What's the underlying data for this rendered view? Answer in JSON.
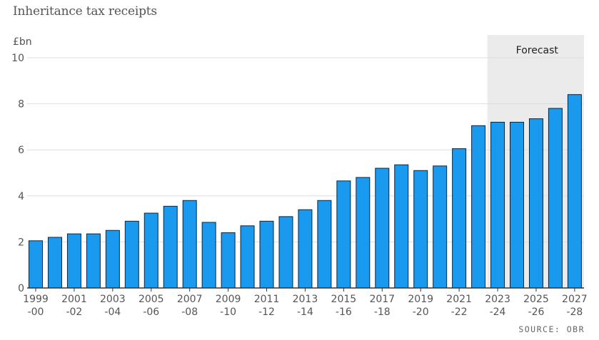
{
  "title": "Inheritance tax receipts",
  "source": "SOURCE: OBR",
  "colors": {
    "bar": "#1a9aef",
    "bar_stroke": "#0b2540",
    "grid": "#dddddd",
    "forecast_bg": "#ebebeb",
    "axis": "#333333"
  },
  "chart_data": {
    "type": "bar",
    "title": "Inheritance tax receipts",
    "ylabel": "£bn",
    "ylim": [
      0,
      10
    ],
    "yticks": [
      0,
      2,
      4,
      6,
      8,
      10
    ],
    "grid": true,
    "forecast": {
      "label": "Forecast",
      "from_index": 24,
      "to_index": 28
    },
    "categories": [
      "1999-00",
      "2000-01",
      "2001-02",
      "2002-03",
      "2003-04",
      "2004-05",
      "2005-06",
      "2006-07",
      "2007-08",
      "2008-09",
      "2009-10",
      "2010-11",
      "2011-12",
      "2012-13",
      "2013-14",
      "2014-15",
      "2015-16",
      "2016-17",
      "2017-18",
      "2018-19",
      "2019-20",
      "2020-21",
      "2021-22",
      "2022-23",
      "2023-24",
      "2024-25",
      "2025-26",
      "2026-27",
      "2027-28"
    ],
    "tick_labels": [
      [
        "1999",
        "-00"
      ],
      [
        "2001",
        "-02"
      ],
      [
        "2003",
        "-04"
      ],
      [
        "2005",
        "-06"
      ],
      [
        "2007",
        "-08"
      ],
      [
        "2009",
        "-10"
      ],
      [
        "2011",
        "-12"
      ],
      [
        "2013",
        "-14"
      ],
      [
        "2015",
        "-16"
      ],
      [
        "2017",
        "-18"
      ],
      [
        "2019",
        "-20"
      ],
      [
        "2021",
        "-22"
      ],
      [
        "2023",
        "-24"
      ],
      [
        "2025",
        "-26"
      ],
      [
        "2027",
        "-28"
      ]
    ],
    "values": [
      2.05,
      2.2,
      2.35,
      2.35,
      2.5,
      2.9,
      3.25,
      3.55,
      3.8,
      2.85,
      2.4,
      2.7,
      2.9,
      3.1,
      3.4,
      3.8,
      4.65,
      4.8,
      5.2,
      5.35,
      5.1,
      5.3,
      6.05,
      7.05,
      7.2,
      7.2,
      7.35,
      7.8,
      8.4
    ]
  }
}
